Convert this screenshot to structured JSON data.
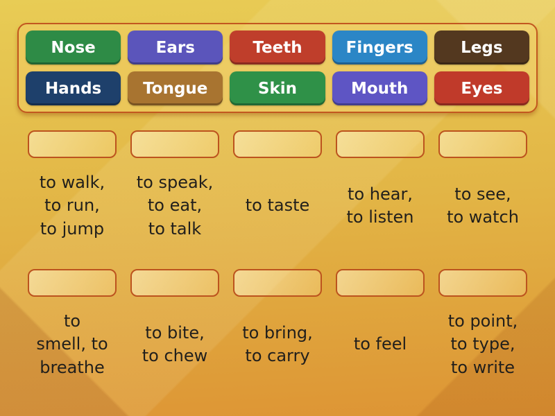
{
  "word_bank": {
    "tiles": [
      {
        "label": "Nose",
        "color": "#2e8b46"
      },
      {
        "label": "Ears",
        "color": "#5b55bb"
      },
      {
        "label": "Teeth",
        "color": "#bf3e2b"
      },
      {
        "label": "Fingers",
        "color": "#2b86c6"
      },
      {
        "label": "Legs",
        "color": "#53381f"
      },
      {
        "label": "Hands",
        "color": "#1e406b"
      },
      {
        "label": "Tongue",
        "color": "#a87430"
      },
      {
        "label": "Skin",
        "color": "#2f9148"
      },
      {
        "label": "Mouth",
        "color": "#5e55c4"
      },
      {
        "label": "Eyes",
        "color": "#c03a2a"
      }
    ]
  },
  "match_rows": {
    "row1": [
      {
        "clue": "to walk,\nto run,\nto jump"
      },
      {
        "clue": "to speak,\nto eat,\nto talk"
      },
      {
        "clue": "to taste"
      },
      {
        "clue": "to hear,\nto listen"
      },
      {
        "clue": "to see,\nto watch"
      }
    ],
    "row2": [
      {
        "clue": "to\nsmell, to\nbreathe"
      },
      {
        "clue": "to bite,\nto chew"
      },
      {
        "clue": "to bring,\nto carry"
      },
      {
        "clue": "to feel"
      },
      {
        "clue": "to point,\nto type,\nto write"
      }
    ]
  },
  "theme": {
    "background_top": "#e8cc55",
    "background_bottom": "#dd9434",
    "panel_border": "#c2571f",
    "zone_border": "#bc531e",
    "clue_text_color": "#211f1c"
  }
}
